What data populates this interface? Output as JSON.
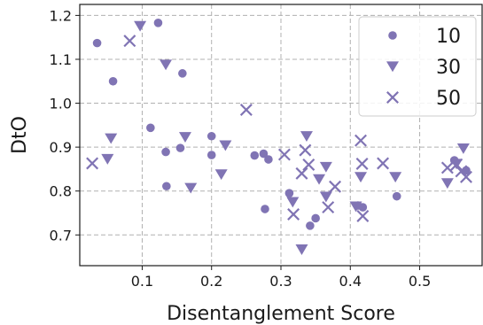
{
  "chart_data": {
    "type": "scatter",
    "title": "",
    "xlabel": "Disentanglement Score",
    "ylabel": "DtO",
    "xlim": [
      0.01,
      0.59
    ],
    "ylim": [
      0.63,
      1.225
    ],
    "xticks": [
      "0.1",
      "0.2",
      "0.3",
      "0.4",
      "0.5"
    ],
    "xtick_values": [
      0.1,
      0.2,
      0.3,
      0.4,
      0.5
    ],
    "yticks": [
      "0.7",
      "0.8",
      "0.9",
      "1.0",
      "1.1",
      "1.2"
    ],
    "ytick_values": [
      0.7,
      0.8,
      0.9,
      1.0,
      1.1,
      1.2
    ],
    "grid": true,
    "legend_position": "top-right",
    "color": "#8074b4",
    "series": [
      {
        "name": "10",
        "marker": "circle",
        "points": [
          [
            0.035,
            1.137
          ],
          [
            0.058,
            1.05
          ],
          [
            0.123,
            1.183
          ],
          [
            0.158,
            1.068
          ],
          [
            0.112,
            0.944
          ],
          [
            0.134,
            0.889
          ],
          [
            0.155,
            0.898
          ],
          [
            0.135,
            0.811
          ],
          [
            0.2,
            0.925
          ],
          [
            0.2,
            0.882
          ],
          [
            0.262,
            0.881
          ],
          [
            0.275,
            0.885
          ],
          [
            0.282,
            0.872
          ],
          [
            0.277,
            0.759
          ],
          [
            0.312,
            0.795
          ],
          [
            0.342,
            0.721
          ],
          [
            0.35,
            0.738
          ],
          [
            0.411,
            0.767
          ],
          [
            0.418,
            0.763
          ],
          [
            0.467,
            0.788
          ],
          [
            0.55,
            0.87
          ],
          [
            0.567,
            0.847
          ]
        ]
      },
      {
        "name": "30",
        "marker": "triangle-down",
        "points": [
          [
            0.097,
            1.176
          ],
          [
            0.134,
            1.088
          ],
          [
            0.055,
            0.92
          ],
          [
            0.05,
            0.873
          ],
          [
            0.162,
            0.923
          ],
          [
            0.17,
            0.807
          ],
          [
            0.22,
            0.904
          ],
          [
            0.214,
            0.838
          ],
          [
            0.337,
            0.925
          ],
          [
            0.33,
            0.667
          ],
          [
            0.317,
            0.775
          ],
          [
            0.365,
            0.855
          ],
          [
            0.355,
            0.827
          ],
          [
            0.365,
            0.787
          ],
          [
            0.408,
            0.765
          ],
          [
            0.415,
            0.832
          ],
          [
            0.465,
            0.832
          ],
          [
            0.54,
            0.818
          ],
          [
            0.563,
            0.897
          ],
          [
            0.553,
            0.862
          ]
        ]
      },
      {
        "name": "50",
        "marker": "x",
        "points": [
          [
            0.082,
            1.142
          ],
          [
            0.028,
            0.863
          ],
          [
            0.25,
            0.985
          ],
          [
            0.305,
            0.883
          ],
          [
            0.335,
            0.893
          ],
          [
            0.34,
            0.86
          ],
          [
            0.33,
            0.84
          ],
          [
            0.318,
            0.747
          ],
          [
            0.368,
            0.763
          ],
          [
            0.378,
            0.81
          ],
          [
            0.415,
            0.915
          ],
          [
            0.417,
            0.862
          ],
          [
            0.418,
            0.743
          ],
          [
            0.447,
            0.863
          ],
          [
            0.54,
            0.853
          ],
          [
            0.553,
            0.86
          ],
          [
            0.56,
            0.845
          ],
          [
            0.567,
            0.832
          ]
        ]
      }
    ]
  }
}
